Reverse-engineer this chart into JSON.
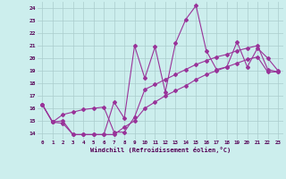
{
  "xlabel": "Windchill (Refroidissement éolien,°C)",
  "background_color": "#cceeed",
  "grid_color": "#aacccc",
  "line_color": "#993399",
  "xlim": [
    -0.5,
    23.5
  ],
  "ylim": [
    13.5,
    24.5
  ],
  "yticks": [
    14,
    15,
    16,
    17,
    18,
    19,
    20,
    21,
    22,
    23,
    24
  ],
  "xticks": [
    0,
    1,
    2,
    3,
    4,
    5,
    6,
    7,
    8,
    9,
    10,
    11,
    12,
    13,
    14,
    15,
    16,
    17,
    18,
    19,
    20,
    21,
    22,
    23
  ],
  "line1_x": [
    0,
    1,
    2,
    3,
    4,
    5,
    6,
    7,
    8,
    9,
    10,
    11,
    12,
    13,
    14,
    15,
    16,
    17,
    18,
    19,
    20,
    21,
    22,
    23
  ],
  "line1_y": [
    16.3,
    14.9,
    15.0,
    13.9,
    13.9,
    13.9,
    13.9,
    16.5,
    15.2,
    21.0,
    18.4,
    20.9,
    17.3,
    21.2,
    23.1,
    24.2,
    20.6,
    19.1,
    19.3,
    21.3,
    19.3,
    20.8,
    20.0,
    19.0
  ],
  "line2_x": [
    0,
    1,
    2,
    3,
    4,
    5,
    6,
    7,
    8,
    9,
    10,
    11,
    12,
    13,
    14,
    15,
    16,
    17,
    18,
    19,
    20,
    21,
    22,
    23
  ],
  "line2_y": [
    16.3,
    14.9,
    15.5,
    15.7,
    15.9,
    16.0,
    16.1,
    14.1,
    14.1,
    15.3,
    17.5,
    17.9,
    18.3,
    18.7,
    19.1,
    19.5,
    19.8,
    20.1,
    20.3,
    20.6,
    20.8,
    21.0,
    19.1,
    18.9
  ],
  "line3_x": [
    0,
    1,
    2,
    3,
    4,
    5,
    6,
    7,
    8,
    9,
    10,
    11,
    12,
    13,
    14,
    15,
    16,
    17,
    18,
    19,
    20,
    21,
    22,
    23
  ],
  "line3_y": [
    16.3,
    14.9,
    14.8,
    13.9,
    13.9,
    13.9,
    13.9,
    13.9,
    14.5,
    15.0,
    16.0,
    16.5,
    17.0,
    17.4,
    17.8,
    18.3,
    18.7,
    19.0,
    19.3,
    19.6,
    19.9,
    20.1,
    18.9,
    18.9
  ]
}
